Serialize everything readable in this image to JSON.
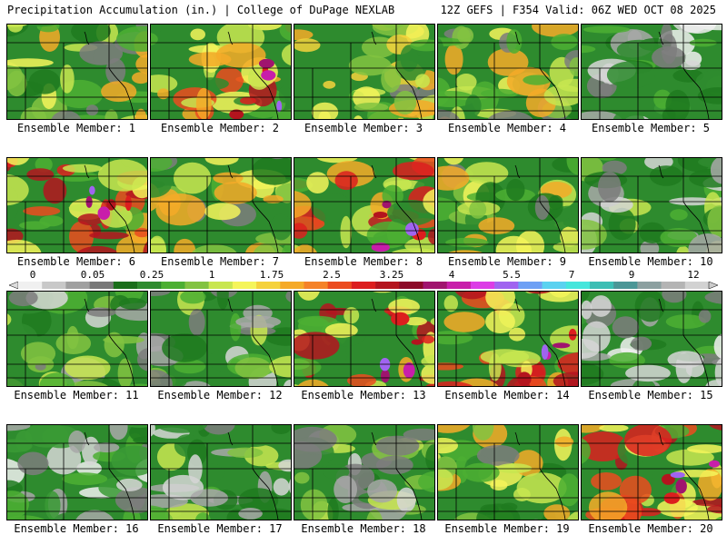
{
  "header": {
    "title_left": "Precipitation Accumulation (in.) | College of DuPage NEXLAB",
    "title_right": "12Z GEFS | F354 Valid: 06Z WED OCT 08 2025"
  },
  "colorbar": {
    "tick_labels": [
      "0",
      "0.05",
      "0.25",
      "1",
      "1.75",
      "2.5",
      "3.25",
      "4",
      "5.5",
      "7",
      "9",
      "12"
    ],
    "colors": [
      "#f0f0f0",
      "#c8c8c8",
      "#a0a0a0",
      "#787878",
      "#1a6e1a",
      "#2e8b2e",
      "#4caf32",
      "#82c341",
      "#c8e650",
      "#f5f55a",
      "#f5d23c",
      "#f5aa28",
      "#f58228",
      "#eb4b1e",
      "#dc1e1e",
      "#b4141e",
      "#8c0a28",
      "#a0146e",
      "#c81eaa",
      "#dc3ce6",
      "#a064f0",
      "#6ea0f5",
      "#5ad2f0",
      "#46e6dc",
      "#3cbeb4",
      "#4b9696",
      "#8ca0a0",
      "#b4b4b4",
      "#d2d2d2"
    ]
  },
  "panels": [
    {
      "label": "Ensemble Member: 1",
      "palette": "moderate"
    },
    {
      "label": "Ensemble Member: 2",
      "palette": "heavy"
    },
    {
      "label": "Ensemble Member: 3",
      "palette": "yellow"
    },
    {
      "label": "Ensemble Member: 4",
      "palette": "moderate"
    },
    {
      "label": "Ensemble Member: 5",
      "palette": "dry"
    },
    {
      "label": "Ensemble Member: 6",
      "palette": "heavy"
    },
    {
      "label": "Ensemble Member: 7",
      "palette": "moderate"
    },
    {
      "label": "Ensemble Member: 8",
      "palette": "heavy"
    },
    {
      "label": "Ensemble Member: 9",
      "palette": "moderate"
    },
    {
      "label": "Ensemble Member: 10",
      "palette": "dryish"
    },
    {
      "label": "Ensemble Member: 11",
      "palette": "dryish"
    },
    {
      "label": "Ensemble Member: 12",
      "palette": "dryish"
    },
    {
      "label": "Ensemble Member: 13",
      "palette": "heavy"
    },
    {
      "label": "Ensemble Member: 14",
      "palette": "heavy"
    },
    {
      "label": "Ensemble Member: 15",
      "palette": "dry"
    },
    {
      "label": "Ensemble Member: 16",
      "palette": "dry"
    },
    {
      "label": "Ensemble Member: 17",
      "palette": "dryish"
    },
    {
      "label": "Ensemble Member: 18",
      "palette": "dryish"
    },
    {
      "label": "Ensemble Member: 19",
      "palette": "moderate"
    },
    {
      "label": "Ensemble Member: 20",
      "palette": "heavy"
    }
  ]
}
